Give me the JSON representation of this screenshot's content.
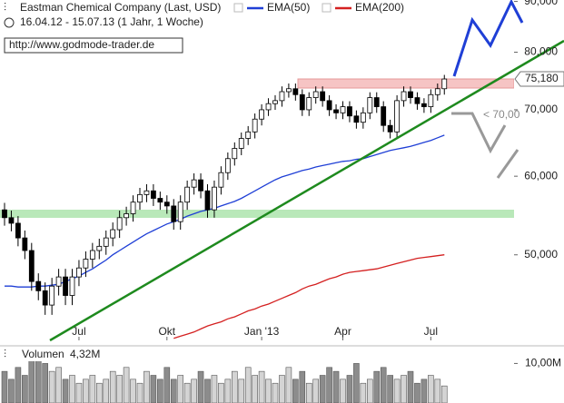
{
  "chart_data": {
    "type": "candlestick",
    "title": "Eastman Chemical Company (Last, USD)",
    "subtitle": "16.04.12 - 15.07.13 (1 Jahr, 1 Woche)",
    "source": "http://www.godmode-trader.de",
    "annotation": "< 70,00",
    "log": true,
    "grid": false,
    "up_color": "#ffffff",
    "down_color": "#000000",
    "categories": [
      null,
      null,
      null,
      null,
      null,
      null,
      null,
      null,
      null,
      null,
      null,
      "Jul",
      null,
      null,
      null,
      null,
      null,
      null,
      null,
      null,
      null,
      null,
      null,
      null,
      "Okt",
      null,
      null,
      null,
      null,
      null,
      null,
      null,
      null,
      null,
      null,
      null,
      null,
      null,
      "Jan '13",
      null,
      null,
      null,
      null,
      null,
      null,
      null,
      null,
      null,
      null,
      null,
      "Apr",
      null,
      null,
      null,
      null,
      null,
      null,
      null,
      null,
      null,
      null,
      null,
      null,
      "Jul",
      null,
      null
    ],
    "open": [
      55.5,
      54.5,
      53.8,
      52.0,
      50.5,
      47.0,
      46.0,
      44.5,
      46.5,
      47.5,
      45.5,
      47.5,
      48.5,
      49.5,
      50.5,
      51.0,
      52.0,
      53.0,
      54.5,
      55.0,
      56.5,
      57.5,
      58.0,
      57.0,
      56.5,
      56.0,
      54.0,
      56.5,
      58.5,
      59.5,
      58.0,
      55.5,
      58.5,
      60.5,
      62.5,
      64.0,
      65.5,
      66.5,
      68.5,
      70.0,
      71.0,
      71.5,
      73.0,
      73.5,
      72.5,
      70.0,
      72.0,
      73.0,
      71.5,
      70.0,
      69.5,
      70.5,
      69.0,
      68.0,
      69.5,
      72.0,
      70.5,
      67.5,
      66.5,
      71.5,
      73.0,
      72.0,
      71.0,
      70.5,
      72.5,
      73.5
    ],
    "high": [
      56.4,
      55.4,
      54.7,
      52.9,
      51.4,
      47.9,
      46.9,
      47.4,
      48.4,
      48.4,
      48.4,
      49.4,
      50.4,
      51.4,
      51.9,
      52.9,
      53.9,
      55.4,
      55.9,
      57.4,
      58.4,
      58.9,
      58.9,
      57.9,
      57.4,
      56.9,
      57.4,
      59.4,
      60.4,
      60.4,
      58.9,
      59.4,
      61.4,
      63.4,
      64.9,
      66.4,
      67.4,
      69.4,
      70.9,
      71.9,
      72.4,
      73.9,
      74.4,
      74.4,
      73.4,
      72.9,
      73.9,
      73.9,
      72.4,
      70.9,
      71.4,
      71.4,
      69.9,
      70.4,
      72.9,
      72.9,
      71.4,
      68.4,
      72.4,
      73.9,
      73.9,
      72.9,
      71.9,
      73.4,
      74.4,
      75.9
    ],
    "low": [
      53.5,
      52.8,
      51.0,
      49.5,
      46.0,
      45.0,
      43.5,
      43.5,
      45.5,
      44.5,
      44.5,
      46.5,
      47.5,
      48.5,
      49.5,
      50.0,
      51.0,
      52.0,
      53.5,
      54.0,
      55.5,
      56.5,
      56.0,
      55.5,
      55.0,
      53.0,
      53.0,
      55.5,
      57.5,
      57.0,
      54.5,
      54.5,
      57.5,
      59.5,
      61.5,
      63.0,
      64.5,
      65.5,
      67.5,
      69.0,
      70.0,
      70.5,
      72.0,
      71.5,
      69.0,
      69.0,
      71.0,
      70.5,
      69.0,
      68.5,
      68.5,
      68.0,
      67.0,
      67.0,
      68.5,
      69.5,
      66.5,
      65.5,
      65.5,
      70.5,
      71.0,
      70.0,
      69.5,
      69.5,
      71.5,
      72.5
    ],
    "close": [
      54.5,
      53.8,
      52.0,
      50.5,
      47.0,
      46.0,
      44.5,
      46.5,
      47.5,
      45.5,
      47.5,
      48.5,
      49.5,
      50.5,
      51.0,
      52.0,
      53.0,
      54.5,
      55.0,
      56.5,
      57.5,
      58.0,
      57.0,
      56.5,
      56.0,
      54.0,
      56.5,
      58.5,
      59.5,
      58.0,
      55.5,
      58.5,
      60.5,
      62.5,
      64.0,
      65.5,
      66.5,
      68.5,
      70.0,
      71.0,
      71.5,
      73.0,
      73.5,
      72.5,
      70.0,
      72.0,
      73.0,
      71.5,
      70.0,
      69.5,
      70.5,
      69.0,
      68.0,
      69.5,
      72.0,
      70.5,
      67.5,
      66.5,
      71.5,
      73.0,
      72.0,
      71.0,
      70.5,
      72.5,
      73.5,
      75.18
    ],
    "last_label": "75,180",
    "series": [
      {
        "name": "EMA(50)",
        "color": "#1f3fd6",
        "values": [
          46.5,
          46.5,
          46.4,
          46.4,
          46.4,
          46.5,
          46.5,
          46.6,
          46.7,
          47.0,
          47.3,
          47.6,
          48.0,
          48.4,
          48.9,
          49.4,
          50.0,
          50.5,
          51.0,
          51.5,
          52.0,
          52.5,
          52.9,
          53.3,
          53.7,
          54.0,
          54.3,
          54.7,
          55.0,
          55.3,
          55.5,
          55.7,
          56.0,
          56.3,
          56.6,
          57.0,
          57.5,
          58.0,
          58.5,
          59.0,
          59.5,
          59.9,
          60.2,
          60.5,
          60.8,
          61.0,
          61.3,
          61.5,
          61.7,
          61.9,
          62.1,
          62.2,
          62.4,
          62.5,
          62.8,
          63.1,
          63.4,
          63.7,
          63.9,
          64.1,
          64.3,
          64.6,
          64.9,
          65.2,
          65.6,
          66.0
        ]
      },
      {
        "name": "EMA(200)",
        "color": "#d42020",
        "values": [
          null,
          null,
          null,
          null,
          null,
          null,
          null,
          null,
          null,
          null,
          null,
          null,
          null,
          null,
          null,
          null,
          null,
          null,
          null,
          null,
          null,
          null,
          null,
          null,
          null,
          41.2,
          41.4,
          41.6,
          41.8,
          42.1,
          42.4,
          42.6,
          42.8,
          43.1,
          43.3,
          43.6,
          43.9,
          44.1,
          44.4,
          44.6,
          44.9,
          45.2,
          45.5,
          45.8,
          46.2,
          46.5,
          46.7,
          47.0,
          47.3,
          47.5,
          47.8,
          48.0,
          48.1,
          48.2,
          48.3,
          48.4,
          48.6,
          48.8,
          49.0,
          49.2,
          49.4,
          49.6,
          49.7,
          49.8,
          49.9,
          50.0
        ]
      }
    ],
    "ylim": [
      41,
      90.3
    ],
    "yticks": [
      {
        "value": 50,
        "label": "50,000"
      },
      {
        "value": 60,
        "label": "60,000"
      },
      {
        "value": 70,
        "label": "70,000"
      },
      {
        "value": 80,
        "label": "80,000"
      },
      {
        "value": 90,
        "label": "90,000"
      }
    ],
    "volume": {
      "name": "Volumen",
      "up_color": "#d4d4d4",
      "down_color": "#8c8c8c",
      "values": [
        8,
        6,
        9,
        7,
        11,
        12,
        10,
        8,
        9,
        6,
        7,
        5,
        6,
        7,
        5,
        6,
        8,
        7,
        9,
        6,
        5,
        8,
        7,
        6,
        9,
        6,
        7,
        5,
        6,
        8,
        6,
        7,
        5,
        6,
        8,
        6,
        9,
        7,
        8,
        6,
        5,
        7,
        9,
        6,
        8,
        5,
        6,
        7,
        9,
        8,
        6,
        7,
        10,
        5,
        6,
        8,
        9,
        7,
        6,
        7,
        8,
        5,
        6,
        7,
        6,
        4.32
      ],
      "last_label": "4,32M",
      "ylim": [
        0,
        14
      ],
      "yticks": [
        {
          "value": 10,
          "label": "10,00M"
        }
      ]
    }
  }
}
